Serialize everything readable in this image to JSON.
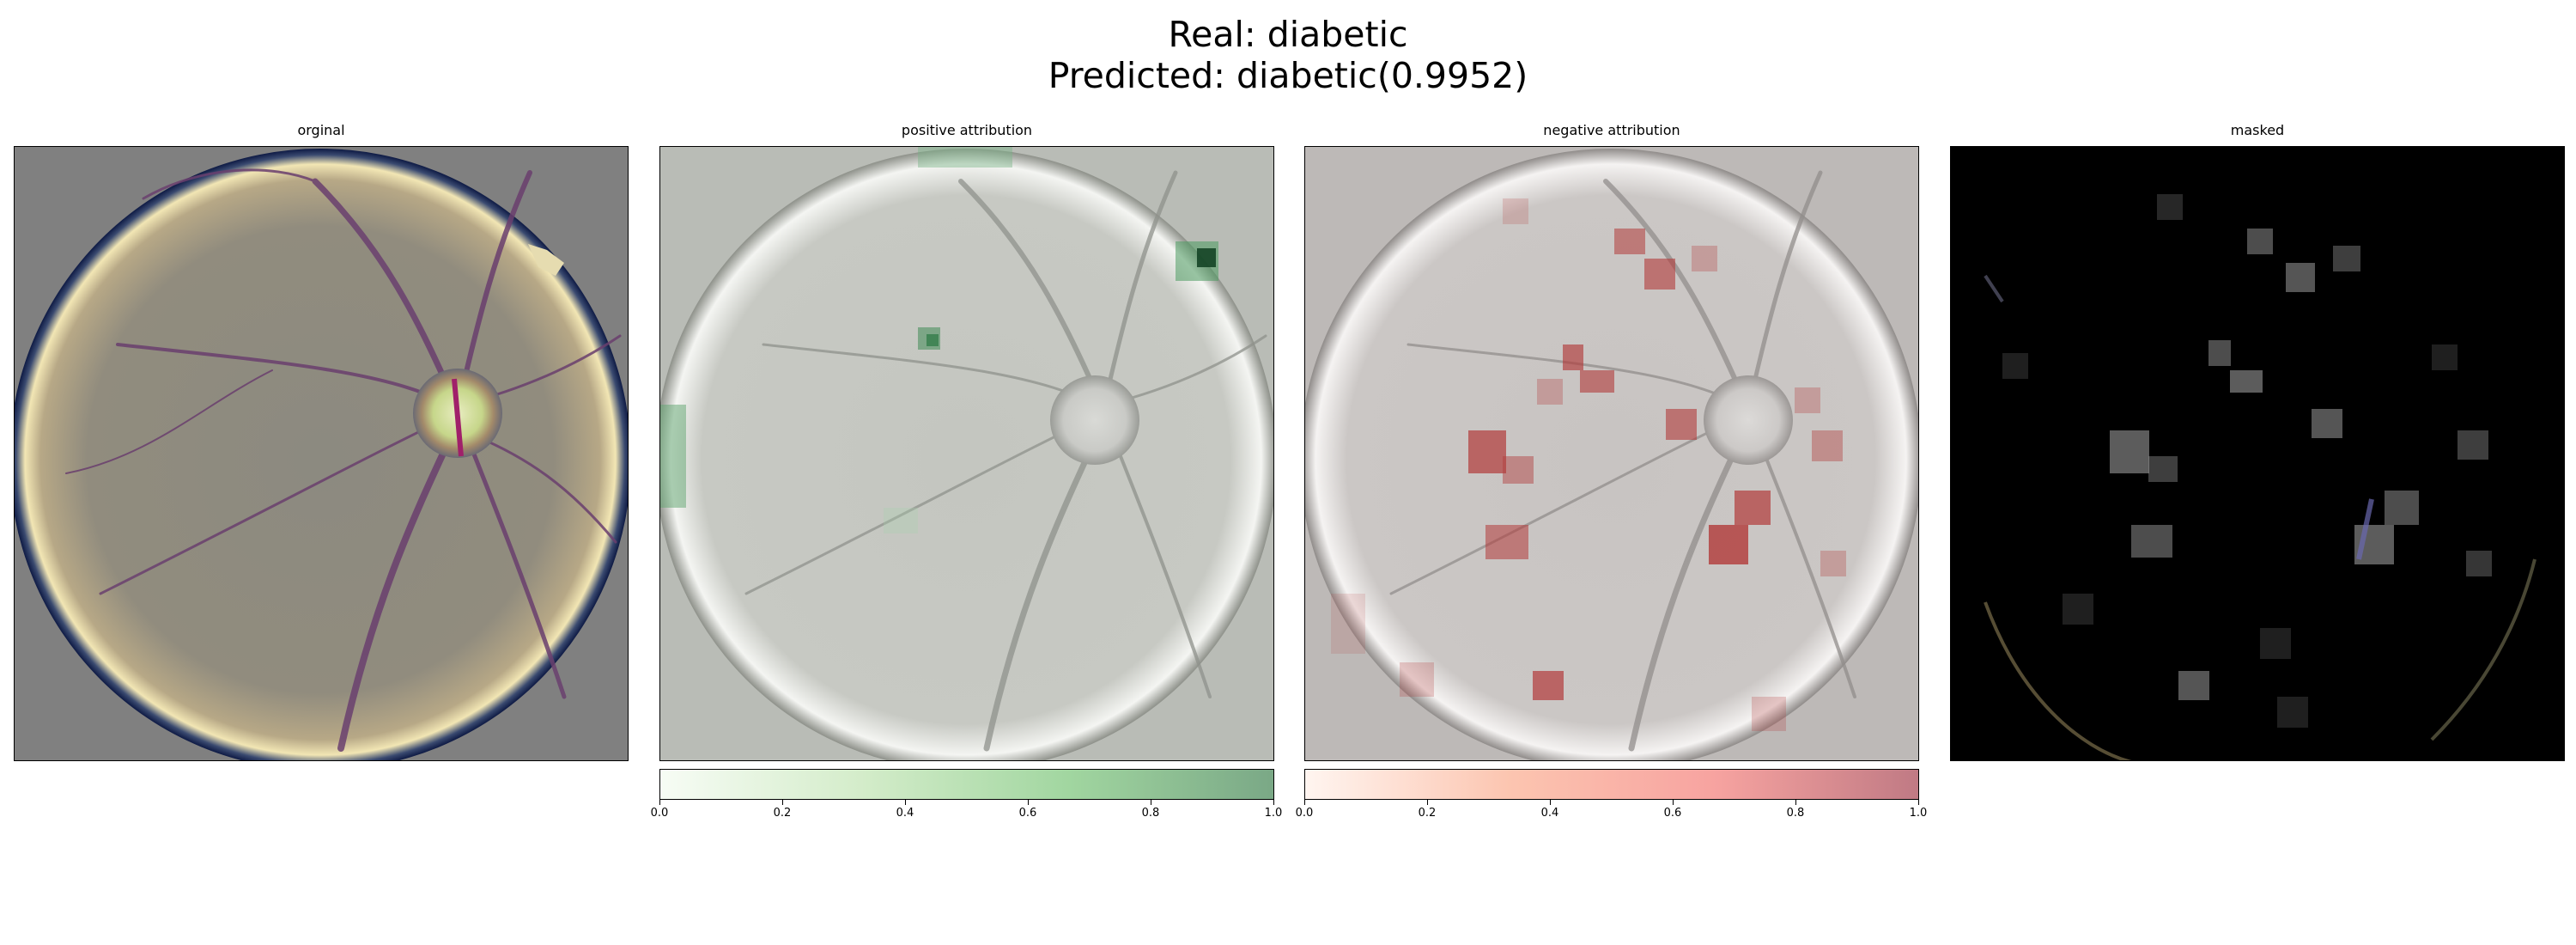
{
  "figure": {
    "title_line1": "Real: diabetic",
    "title_line2": "Predicted: diabetic(0.9952)"
  },
  "panels": [
    {
      "id": "original",
      "label": "orginal"
    },
    {
      "id": "positive",
      "label": "positive attribution"
    },
    {
      "id": "negative",
      "label": "negative attribution"
    },
    {
      "id": "masked",
      "label": "masked"
    }
  ],
  "colorbars": {
    "positive": {
      "ticks": [
        "0.0",
        "0.2",
        "0.4",
        "0.6",
        "0.8",
        "1.0"
      ],
      "color_low": "#f7fcf5",
      "color_high": "#7aa886"
    },
    "negative": {
      "ticks": [
        "0.0",
        "0.2",
        "0.4",
        "0.6",
        "0.8",
        "1.0"
      ],
      "color_low": "#fff5f0",
      "color_high": "#c07a84"
    }
  }
}
